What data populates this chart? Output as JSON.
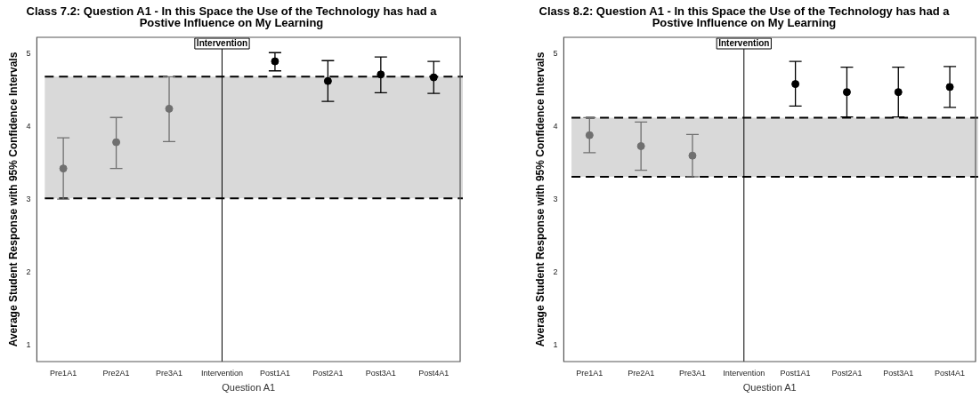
{
  "chart_data": [
    {
      "type": "scatter",
      "title": "Class 7.2: Question A1 - In this Space the Use of the Technology has had a Postive Influence on My Learning",
      "xlabel": "Question A1",
      "ylabel": "Average Student Response with 95% Confidence Intervals",
      "categories": [
        "Pre1A1",
        "Pre2A1",
        "Pre3A1",
        "Intervention",
        "Post1A1",
        "Post2A1",
        "Post3A1",
        "Post4A1"
      ],
      "series": [
        {
          "color": "#707070",
          "values": [
            3.42,
            3.78,
            4.24,
            null,
            null,
            null,
            null,
            null
          ],
          "errors": [
            [
              3.0,
              3.84
            ],
            [
              3.42,
              4.12
            ],
            [
              3.79,
              4.68
            ],
            null,
            null,
            null,
            null,
            null
          ]
        },
        {
          "color": "#000000",
          "values": [
            null,
            null,
            null,
            null,
            4.89,
            4.62,
            4.71,
            4.67
          ],
          "errors": [
            null,
            null,
            null,
            null,
            [
              4.76,
              5.01
            ],
            [
              4.34,
              4.9
            ],
            [
              4.46,
              4.95
            ],
            [
              4.45,
              4.89
            ]
          ]
        }
      ],
      "ylim": [
        0.77,
        5.22
      ],
      "yticks": [
        1,
        2,
        3,
        4,
        5
      ],
      "grid": false,
      "legend": false,
      "marker": "circle",
      "bands": [
        {
          "axis": "y",
          "from": 3.01,
          "to": 4.68,
          "color": "#d9d9d9"
        }
      ],
      "ref_lines": [
        {
          "axis": "x",
          "value": "Intervention",
          "label": "Intervention",
          "color": "#000000"
        },
        {
          "axis": "y",
          "value": 4.68,
          "color": "#000000",
          "line_style": "dashed"
        },
        {
          "axis": "y",
          "value": 3.01,
          "color": "#000000",
          "line_style": "dashed"
        }
      ]
    },
    {
      "type": "scatter",
      "title": "Class 8.2: Question A1 - In this Space the Use of the Technology has had a Postive Influence on My Learning",
      "xlabel": "Question A1",
      "ylabel": "Average Student Response with 95% Confidence Intervals",
      "categories": [
        "Pre1A1",
        "Pre2A1",
        "Pre3A1",
        "Intervention",
        "Post1A1",
        "Post2A1",
        "Post3A1",
        "Post4A1"
      ],
      "series": [
        {
          "color": "#707070",
          "values": [
            3.88,
            3.73,
            3.6,
            null,
            null,
            null,
            null,
            null
          ],
          "errors": [
            [
              3.64,
              4.12
            ],
            [
              3.4,
              4.06
            ],
            [
              3.31,
              3.89
            ],
            null,
            null,
            null,
            null,
            null
          ]
        },
        {
          "color": "#000000",
          "values": [
            null,
            null,
            null,
            null,
            4.58,
            4.47,
            4.47,
            4.54
          ],
          "errors": [
            null,
            null,
            null,
            null,
            [
              4.28,
              4.89
            ],
            [
              4.13,
              4.81
            ],
            [
              4.13,
              4.81
            ],
            [
              4.26,
              4.82
            ]
          ]
        }
      ],
      "ylim": [
        0.78,
        5.22
      ],
      "yticks": [
        1,
        2,
        3,
        4,
        5
      ],
      "grid": false,
      "legend": false,
      "marker": "circle",
      "bands": [
        {
          "axis": "y",
          "from": 3.31,
          "to": 4.12,
          "color": "#d9d9d9"
        }
      ],
      "ref_lines": [
        {
          "axis": "x",
          "value": "Intervention",
          "label": "Intervention",
          "color": "#000000"
        },
        {
          "axis": "y",
          "value": 4.12,
          "color": "#000000",
          "line_style": "dashed"
        },
        {
          "axis": "y",
          "value": 3.31,
          "color": "#000000",
          "line_style": "dashed"
        }
      ]
    }
  ]
}
